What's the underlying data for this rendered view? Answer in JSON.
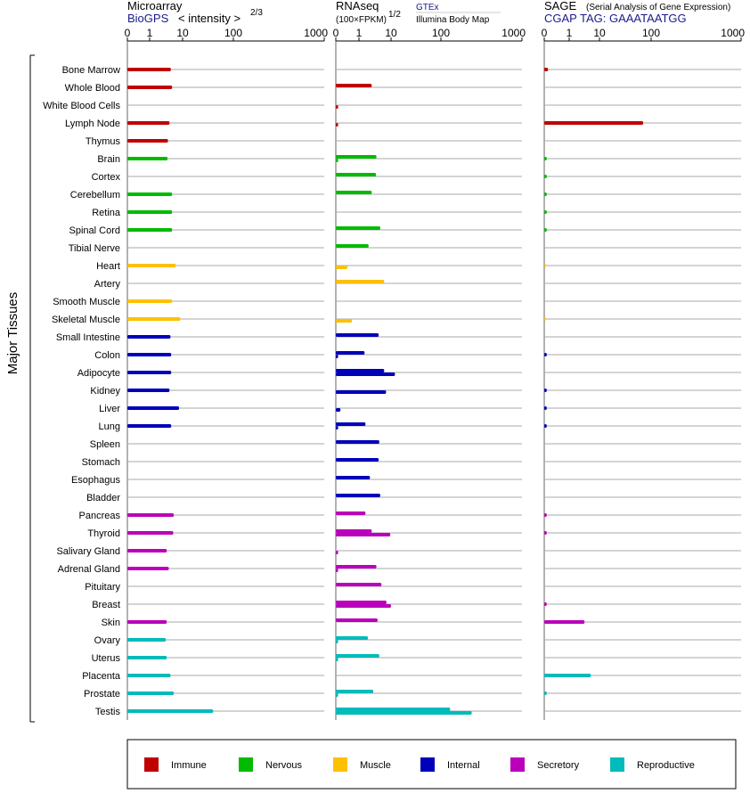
{
  "panels": [
    {
      "id": "microarray",
      "title": "Microarray",
      "subtitle": "BioGPS",
      "scale_note": "< intensity >",
      "scale_exp": "2/3",
      "ticks": [
        "0",
        "1",
        "10",
        "100",
        "1000"
      ]
    },
    {
      "id": "rnaseq",
      "title": "RNAseq",
      "scale_note": "(100×FPKM)",
      "scale_exp": "1/2",
      "source_top": "GTEx",
      "source_bottom": "Illumina Body Map",
      "ticks": [
        "0",
        "1",
        "10",
        "100",
        "1000"
      ]
    },
    {
      "id": "sage",
      "title": "SAGE",
      "title_note": "(Serial Analysis of Gene Expression)",
      "subtitle": "CGAP  TAG: GAAATAATGG",
      "ticks": [
        "0",
        "1",
        "10",
        "100",
        "1000"
      ]
    }
  ],
  "y_axis_label": "Major Tissues",
  "legend": [
    {
      "label": "Immune",
      "color": "#c00000"
    },
    {
      "label": "Nervous",
      "color": "#00bb00"
    },
    {
      "label": "Muscle",
      "color": "#ffc000"
    },
    {
      "label": "Internal",
      "color": "#0000bb"
    },
    {
      "label": "Secretory",
      "color": "#bb00bb"
    },
    {
      "label": "Reproductive",
      "color": "#00bbbb"
    }
  ],
  "chart_data": {
    "type": "bar",
    "orientation": "horizontal",
    "x_scale": "transformed (0, 1, 10, 100, 1000)",
    "categories": [
      "Bone Marrow",
      "Whole Blood",
      "White Blood Cells",
      "Lymph Node",
      "Thymus",
      "Brain",
      "Cortex",
      "Cerebellum",
      "Retina",
      "Spinal Cord",
      "Tibial Nerve",
      "Heart",
      "Artery",
      "Smooth Muscle",
      "Skeletal Muscle",
      "Small Intestine",
      "Colon",
      "Adipocyte",
      "Kidney",
      "Liver",
      "Lung",
      "Spleen",
      "Stomach",
      "Esophagus",
      "Bladder",
      "Pancreas",
      "Thyroid",
      "Salivary Gland",
      "Adrenal Gland",
      "Pituitary",
      "Breast",
      "Skin",
      "Ovary",
      "Uterus",
      "Placenta",
      "Prostate",
      "Testis"
    ],
    "groups": [
      "Immune",
      "Immune",
      "Immune",
      "Immune",
      "Immune",
      "Nervous",
      "Nervous",
      "Nervous",
      "Nervous",
      "Nervous",
      "Nervous",
      "Muscle",
      "Muscle",
      "Muscle",
      "Muscle",
      "Internal",
      "Internal",
      "Internal",
      "Internal",
      "Internal",
      "Internal",
      "Internal",
      "Internal",
      "Internal",
      "Internal",
      "Secretory",
      "Secretory",
      "Secretory",
      "Secretory",
      "Secretory",
      "Secretory",
      "Secretory",
      "Reproductive",
      "Reproductive",
      "Reproductive",
      "Reproductive",
      "Reproductive"
    ],
    "series": [
      {
        "name": "Microarray",
        "values": [
          4.4,
          4.8,
          null,
          4.0,
          3.6,
          3.5,
          null,
          4.8,
          4.8,
          4.8,
          null,
          6.2,
          null,
          4.8,
          8.5,
          4.3,
          4.5,
          4.5,
          4.0,
          7.8,
          4.5,
          null,
          null,
          null,
          null,
          5.4,
          5.2,
          3.3,
          3.8,
          null,
          null,
          3.3,
          3.1,
          3.3,
          4.3,
          5.4,
          40
        ]
      },
      {
        "name": "RNAseq GTEx",
        "values": [
          null,
          2.5,
          null,
          null,
          null,
          3.5,
          3.4,
          2.5,
          null,
          4.6,
          2.0,
          null,
          6.1,
          null,
          null,
          4.1,
          1.5,
          6.1,
          null,
          null,
          1.6,
          4.3,
          4.1,
          2.2,
          4.6,
          1.6,
          2.5,
          null,
          3.5,
          5.0,
          7.2,
          3.8,
          1.9,
          4.3,
          null,
          2.8,
          130
        ]
      },
      {
        "name": "RNAseq Illumina",
        "values": [
          null,
          null,
          0.1,
          0.1,
          null,
          0.1,
          null,
          null,
          null,
          null,
          null,
          0.5,
          null,
          null,
          0.7,
          null,
          0.1,
          12,
          7.0,
          0.2,
          0.1,
          null,
          null,
          null,
          null,
          null,
          9.5,
          0.1,
          0.1,
          null,
          10,
          null,
          0.1,
          0.1,
          null,
          0.1,
          240
        ]
      },
      {
        "name": "SAGE",
        "values": [
          0.15,
          null,
          null,
          70,
          null,
          0.1,
          0.1,
          0.1,
          0.1,
          0.1,
          null,
          0.05,
          null,
          null,
          0.05,
          null,
          0.1,
          null,
          0.1,
          0.1,
          0.1,
          null,
          null,
          null,
          null,
          0.1,
          0.1,
          null,
          null,
          null,
          0.1,
          3.2,
          null,
          null,
          5.2,
          0.1,
          null
        ]
      }
    ]
  }
}
